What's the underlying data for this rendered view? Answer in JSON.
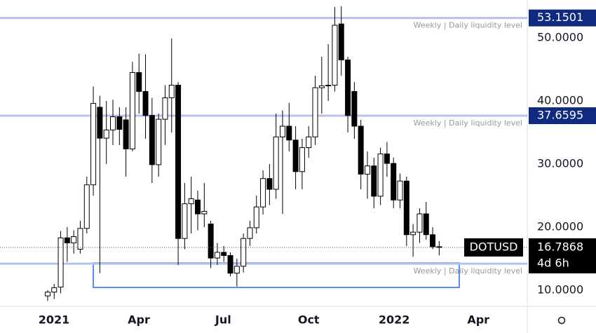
{
  "chart_data": {
    "type": "candlestick",
    "symbol": "DOTUSD",
    "countdown": "4d 6h",
    "open": [
      9.1,
      9.7,
      10.5,
      18.3,
      17.5,
      16.5,
      19.8,
      26.7,
      39.0,
      34.1,
      35.4,
      37.5,
      37.0,
      32.4,
      44.5,
      41.5,
      37.7,
      29.9,
      37.1,
      40.5,
      42.5,
      18.2,
      23.7,
      24.3,
      22.1,
      20.5,
      15.1,
      16.0,
      15.5,
      12.7,
      13.8,
      18.2,
      19.9,
      23.2,
      27.7,
      26.0,
      34.3,
      36.0,
      33.8,
      28.8,
      32.6,
      34.3,
      42.1,
      42.4,
      42.5,
      52.2,
      46.5,
      41.5,
      36.0,
      28.4,
      29.7,
      24.9,
      31.6,
      30.1,
      24.3,
      27.3,
      18.8,
      19.2,
      22.1,
      18.8,
      16.9
    ],
    "high": [
      10.0,
      11.0,
      19.4,
      20.0,
      19.5,
      21.0,
      28.0,
      42.3,
      40.8,
      40.0,
      40.2,
      39.0,
      39.0,
      46.2,
      47.5,
      47.4,
      40.5,
      38.0,
      42.5,
      49.9,
      43.0,
      27.0,
      28.0,
      25.8,
      27.0,
      21.0,
      17.5,
      17.0,
      16.0,
      15.0,
      19.0,
      21.0,
      25.0,
      29.0,
      30.0,
      38.0,
      38.5,
      39.7,
      36.0,
      34.0,
      36.0,
      44.0,
      47.0,
      49.0,
      54.9,
      55.0,
      47.0,
      43.0,
      37.0,
      32.0,
      31.0,
      32.6,
      33.5,
      31.0,
      28.5,
      28.0,
      20.5,
      23.0,
      24.0,
      20.0,
      17.8
    ],
    "low": [
      8.3,
      8.6,
      9.5,
      14.5,
      15.8,
      15.8,
      19.0,
      25.0,
      12.7,
      30.0,
      33.0,
      33.0,
      28.0,
      32.0,
      38.0,
      34.0,
      27.0,
      28.0,
      33.0,
      35.0,
      14.0,
      16.5,
      19.0,
      19.5,
      20.0,
      13.5,
      14.0,
      14.5,
      12.2,
      10.6,
      12.8,
      17.0,
      19.0,
      22.0,
      23.5,
      24.5,
      22.1,
      32.0,
      26.0,
      26.0,
      31.0,
      33.0,
      38.0,
      40.0,
      41.5,
      44.0,
      35.0,
      34.0,
      26.0,
      24.5,
      23.0,
      23.5,
      28.0,
      23.0,
      23.0,
      17.0,
      15.3,
      17.5,
      18.0,
      16.5,
      15.5
    ],
    "close": [
      9.7,
      10.4,
      18.3,
      17.5,
      18.5,
      19.8,
      26.7,
      39.6,
      34.1,
      35.4,
      37.5,
      35.5,
      32.4,
      44.5,
      41.5,
      37.7,
      29.9,
      37.1,
      40.5,
      42.5,
      18.2,
      23.7,
      24.5,
      22.1,
      22.5,
      15.1,
      16.0,
      15.5,
      12.7,
      13.8,
      18.2,
      19.9,
      23.2,
      27.7,
      26.0,
      34.3,
      36.0,
      33.8,
      28.8,
      32.6,
      34.3,
      42.1,
      42.4,
      42.5,
      52.0,
      46.5,
      37.7,
      36.0,
      28.4,
      29.7,
      24.9,
      31.6,
      30.1,
      24.3,
      27.3,
      18.8,
      19.2,
      22.1,
      18.8,
      16.9,
      16.7868
    ],
    "xlim": [
      -7.3,
      73.5
    ],
    "xticks": [
      {
        "value": 0.97,
        "label": "2021"
      },
      {
        "value": 13.98,
        "label": "Apr"
      },
      {
        "value": 26.9,
        "label": "Jul"
      },
      {
        "value": 40.0,
        "label": "Oct"
      },
      {
        "value": 53.1,
        "label": "2022"
      },
      {
        "value": 66.0,
        "label": "Apr"
      }
    ],
    "ylim": [
      7.44,
      56
    ],
    "yticks": [
      {
        "value": 10,
        "label": "10.0000"
      },
      {
        "value": 20,
        "label": "20.0000"
      },
      {
        "value": 30,
        "label": "30.0000"
      },
      {
        "value": 40,
        "label": "40.0000"
      },
      {
        "value": 50,
        "label": "50.0000"
      }
    ],
    "levels": [
      53.1501,
      37.6595,
      14.2
    ],
    "level_notes": [
      "Weekly | Daily liquidity level",
      "Weekly | Daily liquidity level",
      "Weekly | Daily liquidity level"
    ],
    "level_color": "#b7c2ec",
    "badge_color": "#0f2a80"
  }
}
